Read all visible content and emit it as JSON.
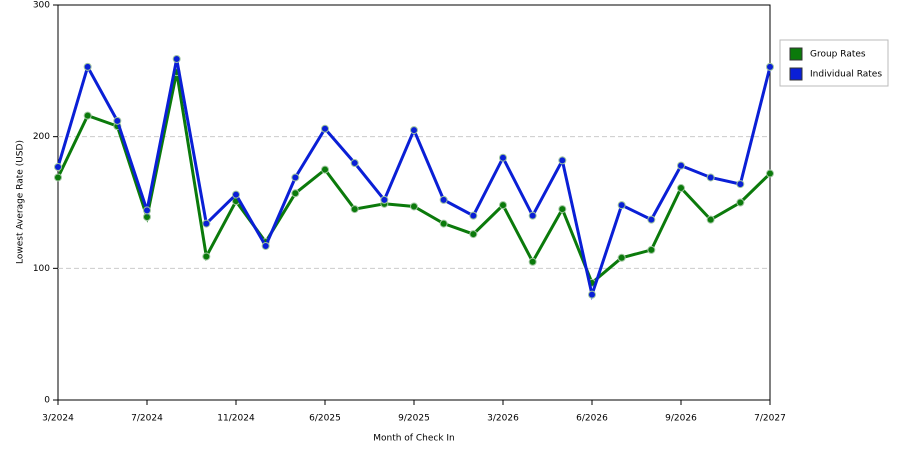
{
  "chart_data": {
    "type": "line",
    "x_label": "Month of Check In",
    "y_label": "Lowest Average Rate (USD)",
    "categories": [
      "3/2024",
      null,
      null,
      "7/2024",
      null,
      null,
      "11/2024",
      null,
      null,
      "6/2025",
      null,
      null,
      "9/2025",
      null,
      null,
      "3/2026",
      null,
      null,
      "6/2026",
      null,
      null,
      "9/2026",
      null,
      null,
      "7/2027"
    ],
    "series": [
      {
        "name": "Group Rates",
        "color": "#0b7a0b",
        "values": [
          169,
          216,
          208,
          139,
          249,
          109,
          151,
          120,
          157,
          175,
          145,
          149,
          147,
          134,
          126,
          148,
          105,
          145,
          89,
          108,
          114,
          161,
          137,
          150,
          172
        ]
      },
      {
        "name": "Individual Rates",
        "color": "#0a1fd6",
        "values": [
          177,
          253,
          212,
          144,
          259,
          134,
          156,
          117,
          169,
          206,
          180,
          152,
          205,
          152,
          140,
          184,
          140,
          182,
          80,
          148,
          137,
          178,
          169,
          164,
          253
        ]
      }
    ],
    "ylim": [
      0,
      300
    ],
    "yticks": [
      0,
      100,
      200,
      300
    ],
    "grid": true,
    "legend": "right"
  }
}
